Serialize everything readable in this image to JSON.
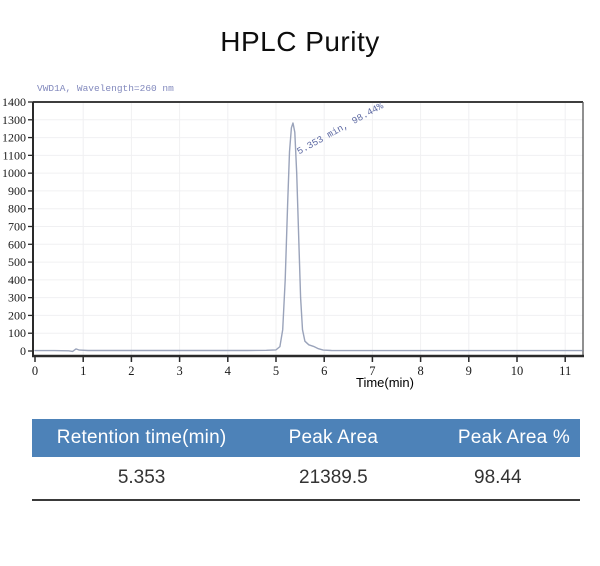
{
  "title": "HPLC Purity",
  "chart_data": {
    "type": "line",
    "title": "VWD1A, Wavelength=260 nm",
    "xlabel": "Time(min)",
    "ylabel": "",
    "xlim": [
      0,
      11.35
    ],
    "ylim": [
      0,
      1400
    ],
    "x_ticks": [
      0,
      1,
      2,
      3,
      4,
      5,
      6,
      7,
      8,
      9,
      10,
      11
    ],
    "y_ticks": [
      0,
      100,
      200,
      300,
      400,
      500,
      600,
      700,
      800,
      900,
      1000,
      1100,
      1200,
      1300,
      1400
    ],
    "grid": true,
    "annotation": {
      "text": "5.353 min, 98.44%",
      "x": 5.353,
      "y": 1282
    },
    "series": [
      {
        "name": "VWD1A, Wavelength=260 nm",
        "points": [
          [
            0,
            2
          ],
          [
            0.4,
            2
          ],
          [
            0.7,
            1
          ],
          [
            0.78,
            -2
          ],
          [
            0.85,
            12
          ],
          [
            0.92,
            5
          ],
          [
            1.1,
            3
          ],
          [
            1.6,
            3
          ],
          [
            2.2,
            3
          ],
          [
            3.0,
            3
          ],
          [
            3.8,
            3
          ],
          [
            4.4,
            3
          ],
          [
            4.8,
            4
          ],
          [
            5.0,
            6
          ],
          [
            5.08,
            25
          ],
          [
            5.14,
            120
          ],
          [
            5.19,
            400
          ],
          [
            5.24,
            820
          ],
          [
            5.28,
            1120
          ],
          [
            5.32,
            1255
          ],
          [
            5.353,
            1282
          ],
          [
            5.39,
            1230
          ],
          [
            5.43,
            1000
          ],
          [
            5.47,
            640
          ],
          [
            5.51,
            300
          ],
          [
            5.55,
            120
          ],
          [
            5.6,
            55
          ],
          [
            5.68,
            35
          ],
          [
            5.78,
            26
          ],
          [
            5.88,
            13
          ],
          [
            5.98,
            5
          ],
          [
            6.15,
            3
          ],
          [
            6.6,
            2
          ],
          [
            7.2,
            2
          ],
          [
            8,
            2
          ],
          [
            9,
            2
          ],
          [
            10,
            2
          ],
          [
            11,
            2
          ],
          [
            11.35,
            2
          ]
        ]
      }
    ]
  },
  "table": {
    "headers": [
      "Retention time(min)",
      "Peak Area",
      "Peak Area %"
    ],
    "rows": [
      [
        "5.353",
        "21389.5",
        "98.44"
      ]
    ]
  },
  "colors": {
    "header_bg": "#4d82b8",
    "trace": "#9aa3ba",
    "annotation_text": "#5c68a2",
    "detector_label": "#8289bd",
    "axis": "#2a2a2a",
    "grid": "#f0f0f2"
  }
}
